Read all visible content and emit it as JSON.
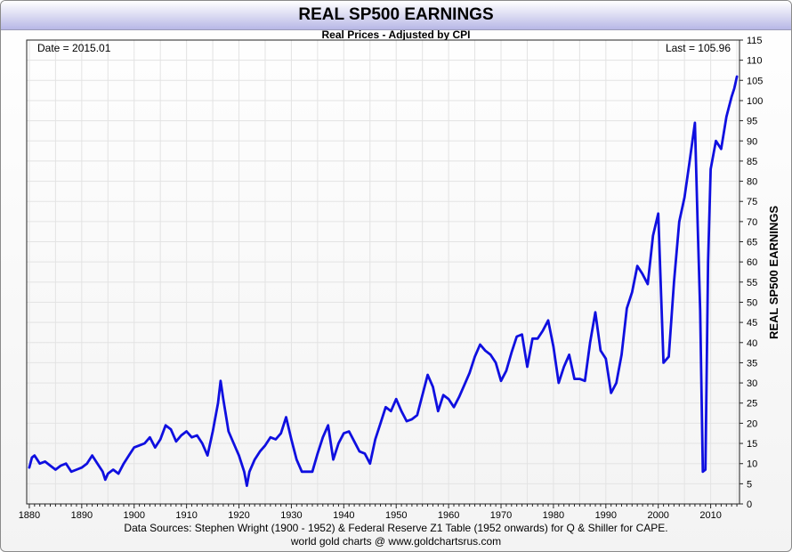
{
  "title": "REAL SP500 EARNINGS",
  "subtitle": "Real Prices - Adjusted by CPI",
  "date_label": "Date = 2015.01",
  "last_label": "Last = 105.96",
  "footer": {
    "sources": "Data Sources: Stephen Wright (1900 - 1952) & Federal Reserve Z1 Table (1952 onwards) for Q & Shiller for CAPE.",
    "credit": "world gold charts @ www.goldchartsrus.com"
  },
  "colors": {
    "line": "#0f0fe0",
    "grid": "#e3e3e3",
    "title_bar": "#c8c8ee"
  },
  "chart_data": {
    "type": "line",
    "title": "REAL SP500 EARNINGS",
    "subtitle": "Real Prices - Adjusted by CPI",
    "ylabel": "REAL SP500 EARNINGS",
    "xlim": [
      1879.5,
      2015.5
    ],
    "ylim": [
      0,
      115
    ],
    "x_ticks": [
      "1880",
      "1890",
      "1900",
      "1910",
      "1920",
      "1930",
      "1940",
      "1950",
      "1960",
      "1970",
      "1980",
      "1990",
      "2000",
      "2010"
    ],
    "y_ticks": [
      "0",
      "5",
      "10",
      "15",
      "20",
      "25",
      "30",
      "35",
      "40",
      "45",
      "50",
      "55",
      "60",
      "65",
      "70",
      "75",
      "80",
      "85",
      "90",
      "95",
      "100",
      "105",
      "110",
      "115"
    ],
    "grid": true,
    "y_axis_side": "right",
    "series": [
      {
        "x": [
          1880,
          1880.5,
          1881,
          1881.5,
          1882,
          1883,
          1884,
          1885,
          1886,
          1887,
          1888,
          1889,
          1890,
          1891,
          1892,
          1893,
          1894,
          1894.5,
          1895,
          1896,
          1897,
          1898,
          1899,
          1900,
          1901,
          1902,
          1903,
          1904,
          1905,
          1906,
          1907,
          1908,
          1909,
          1910,
          1911,
          1912,
          1913,
          1914,
          1915,
          1916,
          1916.5,
          1917,
          1918,
          1919,
          1920,
          1921,
          1921.5,
          1922,
          1923,
          1924,
          1925,
          1926,
          1927,
          1928,
          1929,
          1930,
          1931,
          1932,
          1933,
          1934,
          1935,
          1936,
          1937,
          1938,
          1939,
          1940,
          1941,
          1942,
          1943,
          1944,
          1945,
          1946,
          1947,
          1948,
          1949,
          1950,
          1951,
          1952,
          1953,
          1954,
          1955,
          1956,
          1957,
          1958,
          1959,
          1960,
          1961,
          1962,
          1963,
          1964,
          1965,
          1966,
          1967,
          1968,
          1969,
          1970,
          1971,
          1972,
          1973,
          1974,
          1975,
          1976,
          1977,
          1978,
          1979,
          1980,
          1981,
          1982,
          1983,
          1984,
          1985,
          1986,
          1987,
          1988,
          1989,
          1990,
          1991,
          1992,
          1993,
          1994,
          1995,
          1996,
          1997,
          1998,
          1999,
          2000,
          2001,
          2002,
          2003,
          2004,
          2005,
          2006,
          2007,
          2007.5,
          2008,
          2008.5,
          2009,
          2009.5,
          2010,
          2011,
          2012,
          2013,
          2014,
          2014.5,
          2015
        ],
        "values": [
          9,
          11.5,
          12,
          11,
          10,
          10.5,
          9.5,
          8.5,
          9.5,
          10,
          8,
          8.5,
          9,
          10,
          12,
          10,
          8,
          6,
          7.5,
          8.5,
          7.5,
          10,
          12,
          14,
          14.5,
          15,
          16.5,
          14,
          16,
          19.5,
          18.5,
          15.5,
          17,
          18,
          16.5,
          17,
          15,
          12,
          18,
          25,
          30.5,
          26,
          18,
          15,
          12,
          8,
          4.5,
          8,
          11,
          13,
          14.5,
          16.5,
          16,
          17.5,
          21.5,
          16,
          11,
          8,
          8,
          8,
          12.5,
          16.5,
          19.5,
          11,
          15,
          17.5,
          18,
          15.5,
          13,
          12.5,
          10,
          16,
          20,
          24,
          23,
          26,
          23,
          20.5,
          21,
          22,
          27,
          32,
          29,
          23,
          27,
          26,
          24,
          26.5,
          29.5,
          32.5,
          36.5,
          39.5,
          38,
          37,
          35,
          30.5,
          33,
          37.5,
          41.5,
          42,
          34,
          41,
          41,
          43,
          45.5,
          39,
          30,
          34,
          37,
          31,
          31,
          30.5,
          40,
          47.5,
          38,
          36,
          27.5,
          30,
          37,
          48.5,
          52.5,
          59,
          57,
          54.5,
          66.5,
          72,
          35,
          36.5,
          55,
          70,
          76,
          85,
          94.5,
          70,
          48,
          8,
          8.5,
          60,
          83,
          90,
          88,
          96,
          101,
          103,
          105.96
        ]
      }
    ]
  }
}
